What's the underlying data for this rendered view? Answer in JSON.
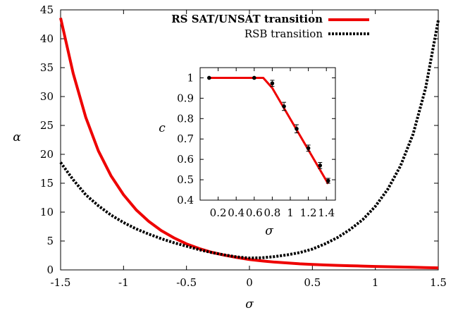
{
  "chart_data": [
    {
      "type": "line",
      "xlabel": "σ",
      "ylabel": "α",
      "xlim": [
        -1.5,
        1.5
      ],
      "ylim": [
        0,
        45
      ],
      "x_ticks": [
        -1.5,
        -1,
        -0.5,
        0,
        0.5,
        1,
        1.5
      ],
      "y_ticks": [
        0,
        5,
        10,
        15,
        20,
        25,
        30,
        35,
        40,
        45
      ],
      "legend_position": "top-right",
      "grid": false,
      "series": [
        {
          "name": "RS SAT/UNSAT transition",
          "color": "#ee0000",
          "style": "solid",
          "points": [
            [
              -1.5,
              43.6
            ],
            [
              -1.4,
              34.0
            ],
            [
              -1.3,
              26.4
            ],
            [
              -1.2,
              20.6
            ],
            [
              -1.1,
              16.3
            ],
            [
              -1.0,
              13.0
            ],
            [
              -0.9,
              10.4
            ],
            [
              -0.8,
              8.4
            ],
            [
              -0.7,
              6.8
            ],
            [
              -0.6,
              5.55
            ],
            [
              -0.5,
              4.5
            ],
            [
              -0.4,
              3.7
            ],
            [
              -0.3,
              3.05
            ],
            [
              -0.2,
              2.55
            ],
            [
              -0.1,
              2.15
            ],
            [
              0.0,
              1.8
            ],
            [
              0.1,
              1.55
            ],
            [
              0.2,
              1.35
            ],
            [
              0.3,
              1.2
            ],
            [
              0.4,
              1.05
            ],
            [
              0.5,
              0.95
            ],
            [
              0.6,
              0.85
            ],
            [
              0.7,
              0.78
            ],
            [
              0.8,
              0.72
            ],
            [
              0.9,
              0.66
            ],
            [
              1.0,
              0.6
            ],
            [
              1.1,
              0.55
            ],
            [
              1.2,
              0.5
            ],
            [
              1.3,
              0.45
            ],
            [
              1.4,
              0.4
            ],
            [
              1.5,
              0.35
            ]
          ]
        },
        {
          "name": "RSB transition",
          "color": "#000000",
          "style": "dotted",
          "points": [
            [
              -1.5,
              18.6
            ],
            [
              -1.4,
              15.6
            ],
            [
              -1.3,
              13.0
            ],
            [
              -1.2,
              11.1
            ],
            [
              -1.1,
              9.5
            ],
            [
              -1.0,
              8.2
            ],
            [
              -0.9,
              7.1
            ],
            [
              -0.8,
              6.2
            ],
            [
              -0.7,
              5.4
            ],
            [
              -0.6,
              4.7
            ],
            [
              -0.5,
              4.1
            ],
            [
              -0.4,
              3.5
            ],
            [
              -0.3,
              3.0
            ],
            [
              -0.2,
              2.6
            ],
            [
              -0.1,
              2.25
            ],
            [
              0.0,
              2.05
            ],
            [
              0.1,
              2.1
            ],
            [
              0.2,
              2.3
            ],
            [
              0.3,
              2.6
            ],
            [
              0.4,
              3.0
            ],
            [
              0.5,
              3.6
            ],
            [
              0.6,
              4.5
            ],
            [
              0.7,
              5.6
            ],
            [
              0.8,
              7.0
            ],
            [
              0.9,
              8.7
            ],
            [
              1.0,
              11.0
            ],
            [
              1.1,
              14.0
            ],
            [
              1.2,
              18.0
            ],
            [
              1.3,
              23.5
            ],
            [
              1.4,
              31.5
            ],
            [
              1.5,
              43.2
            ]
          ]
        }
      ]
    },
    {
      "type": "line",
      "role": "inset",
      "xlabel": "σ",
      "ylabel": "c",
      "xlim": [
        0,
        1.5
      ],
      "ylim": [
        0.4,
        1.05
      ],
      "x_ticks": [
        0.2,
        0.4,
        0.6,
        0.8,
        1,
        1.2,
        1.4
      ],
      "x_tick_labels": [
        "0.2",
        "0.4",
        "0.6",
        "0.8",
        "1",
        "1.2",
        "1.4"
      ],
      "y_ticks": [
        0.4,
        0.5,
        0.6,
        0.7,
        0.8,
        0.9,
        1
      ],
      "y_tick_labels": [
        "0.4",
        "0.5",
        "0.6",
        "0.7",
        "0.8",
        "0.9",
        "1"
      ],
      "series": [
        {
          "color": "#ee0000",
          "style": "solid",
          "points": [
            [
              0.1,
              1.0
            ],
            [
              0.5,
              1.0
            ],
            [
              0.7,
              1.0
            ],
            [
              0.8,
              0.95
            ],
            [
              1.42,
              0.48
            ]
          ]
        },
        {
          "color": "#000000",
          "style": "markers",
          "points": [
            {
              "x": 0.1,
              "y": 1.0,
              "err": 0.0
            },
            {
              "x": 0.6,
              "y": 1.0,
              "err": 0.0
            },
            {
              "x": 0.8,
              "y": 0.973,
              "err": 0.015
            },
            {
              "x": 0.93,
              "y": 0.86,
              "err": 0.02
            },
            {
              "x": 1.07,
              "y": 0.75,
              "err": 0.02
            },
            {
              "x": 1.2,
              "y": 0.655,
              "err": 0.015
            },
            {
              "x": 1.33,
              "y": 0.57,
              "err": 0.015
            },
            {
              "x": 1.42,
              "y": 0.495,
              "err": 0.012
            }
          ]
        }
      ]
    }
  ]
}
